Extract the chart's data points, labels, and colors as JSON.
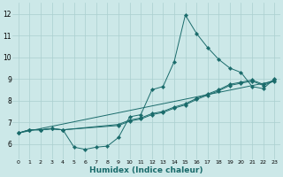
{
  "xlabel": "Humidex (Indice chaleur)",
  "bg_color": "#cce8e8",
  "line_color": "#1a6b6b",
  "grid_color": "#aacfcf",
  "xlim": [
    -0.5,
    23.5
  ],
  "ylim": [
    5.3,
    12.5
  ],
  "xticks": [
    0,
    1,
    2,
    3,
    4,
    5,
    6,
    7,
    8,
    9,
    10,
    11,
    12,
    13,
    14,
    15,
    16,
    17,
    18,
    19,
    20,
    21,
    22,
    23
  ],
  "yticks": [
    6,
    7,
    8,
    9,
    10,
    11,
    12
  ],
  "line1_x": [
    0,
    1,
    2,
    3,
    4,
    5,
    6,
    7,
    8,
    9,
    10,
    11,
    12,
    13,
    14,
    15,
    16,
    17,
    18,
    19,
    20,
    21,
    22,
    23
  ],
  "line1_y": [
    6.5,
    6.65,
    6.65,
    6.7,
    6.65,
    5.85,
    5.75,
    5.85,
    5.9,
    6.3,
    7.25,
    7.35,
    8.5,
    8.65,
    9.8,
    11.95,
    11.1,
    10.45,
    9.9,
    9.5,
    9.3,
    8.65,
    8.55,
    9.0
  ],
  "line2_x": [
    0,
    1,
    2,
    3,
    4,
    9,
    10,
    11,
    12,
    13,
    14,
    15,
    16,
    17,
    18,
    19,
    20,
    21,
    22,
    23
  ],
  "line2_y": [
    6.5,
    6.65,
    6.65,
    6.7,
    6.65,
    6.9,
    7.1,
    7.2,
    7.4,
    7.5,
    7.7,
    7.85,
    8.1,
    8.3,
    8.5,
    8.75,
    8.85,
    8.95,
    8.75,
    8.95
  ],
  "line3_x": [
    0,
    1,
    2,
    3,
    4,
    9,
    10,
    11,
    12,
    13,
    14,
    15,
    16,
    17,
    18,
    19,
    20,
    21,
    22,
    23
  ],
  "line3_y": [
    6.5,
    6.65,
    6.65,
    6.7,
    6.65,
    6.85,
    7.05,
    7.15,
    7.35,
    7.45,
    7.65,
    7.8,
    8.05,
    8.25,
    8.45,
    8.7,
    8.8,
    8.9,
    8.7,
    8.9
  ],
  "line4_x": [
    0,
    23
  ],
  "line4_y": [
    6.5,
    8.9
  ]
}
